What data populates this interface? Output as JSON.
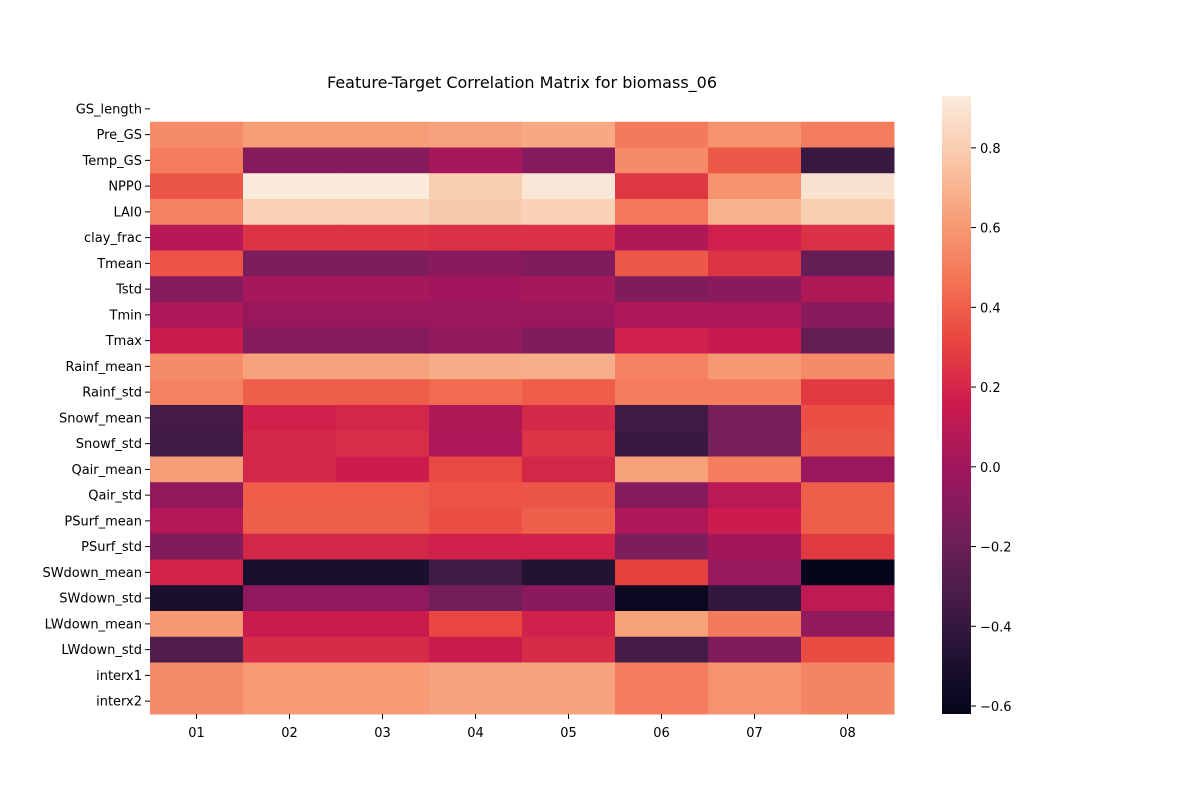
{
  "chart_data": {
    "type": "heatmap",
    "title": "Feature-Target Correlation Matrix for biomass_06",
    "xlabel": "",
    "ylabel": "",
    "colormap": "rocket",
    "colorbar": {
      "min": -0.62,
      "max": 0.93,
      "ticks": [
        -0.6,
        -0.4,
        -0.2,
        0.0,
        0.2,
        0.4,
        0.6,
        0.8
      ],
      "tick_labels": [
        "−0.6",
        "−0.4",
        "−0.2",
        "0.0",
        "0.2",
        "0.4",
        "0.6",
        "0.8"
      ]
    },
    "x_categories": [
      "01",
      "02",
      "03",
      "04",
      "05",
      "06",
      "07",
      "08"
    ],
    "y_categories": [
      "GS_length",
      "Pre_GS",
      "Temp_GS",
      "NPP0",
      "LAI0",
      "clay_frac",
      "Tmean",
      "Tstd",
      "Tmin",
      "Tmax",
      "Rainf_mean",
      "Rainf_std",
      "Snowf_mean",
      "Snowf_std",
      "Qair_mean",
      "Qair_std",
      "PSurf_mean",
      "PSurf_std",
      "SWdown_mean",
      "SWdown_std",
      "LWdown_mean",
      "LWdown_std",
      "interx1",
      "interx2"
    ],
    "values": [
      [
        null,
        null,
        null,
        null,
        null,
        null,
        null,
        null
      ],
      [
        0.55,
        0.62,
        0.62,
        0.64,
        0.66,
        0.49,
        0.58,
        0.5
      ],
      [
        0.5,
        -0.1,
        -0.1,
        0.02,
        -0.1,
        0.55,
        0.38,
        -0.38
      ],
      [
        0.37,
        0.93,
        0.93,
        0.8,
        0.91,
        0.26,
        0.58,
        0.89
      ],
      [
        0.52,
        0.82,
        0.82,
        0.78,
        0.82,
        0.48,
        0.69,
        0.8
      ],
      [
        0.08,
        0.25,
        0.25,
        0.24,
        0.24,
        0.06,
        0.17,
        0.24
      ],
      [
        0.36,
        -0.13,
        -0.13,
        -0.08,
        -0.12,
        0.38,
        0.25,
        -0.22
      ],
      [
        -0.1,
        0.02,
        0.02,
        0.0,
        0.02,
        -0.12,
        -0.08,
        0.06
      ],
      [
        0.05,
        -0.03,
        -0.03,
        -0.03,
        -0.02,
        0.05,
        0.04,
        -0.08
      ],
      [
        0.15,
        -0.1,
        -0.1,
        -0.05,
        -0.12,
        0.18,
        0.14,
        -0.22
      ],
      [
        0.55,
        0.64,
        0.64,
        0.67,
        0.68,
        0.52,
        0.6,
        0.55
      ],
      [
        0.52,
        0.4,
        0.4,
        0.44,
        0.39,
        0.5,
        0.5,
        0.27
      ],
      [
        -0.34,
        0.18,
        0.2,
        0.06,
        0.21,
        -0.36,
        -0.15,
        0.35
      ],
      [
        -0.35,
        0.21,
        0.23,
        0.05,
        0.25,
        -0.38,
        -0.15,
        0.37
      ],
      [
        0.62,
        0.2,
        0.16,
        0.33,
        0.2,
        0.63,
        0.5,
        -0.03
      ],
      [
        -0.05,
        0.39,
        0.39,
        0.36,
        0.37,
        -0.1,
        0.09,
        0.4
      ],
      [
        0.07,
        0.4,
        0.4,
        0.35,
        0.4,
        0.05,
        0.16,
        0.4
      ],
      [
        -0.12,
        0.2,
        0.2,
        0.18,
        0.18,
        -0.13,
        0.01,
        0.27
      ],
      [
        0.19,
        -0.51,
        -0.51,
        -0.35,
        -0.47,
        0.3,
        -0.04,
        -0.62
      ],
      [
        -0.51,
        -0.06,
        -0.06,
        -0.17,
        -0.08,
        -0.58,
        -0.4,
        0.11
      ],
      [
        0.6,
        0.15,
        0.15,
        0.32,
        0.18,
        0.63,
        0.49,
        -0.05
      ],
      [
        -0.29,
        0.22,
        0.22,
        0.15,
        0.22,
        -0.34,
        -0.12,
        0.34
      ],
      [
        0.55,
        0.61,
        0.61,
        0.64,
        0.64,
        0.5,
        0.58,
        0.53
      ],
      [
        0.55,
        0.61,
        0.61,
        0.64,
        0.64,
        0.5,
        0.58,
        0.53
      ]
    ]
  }
}
